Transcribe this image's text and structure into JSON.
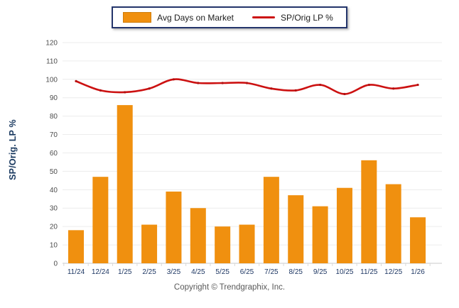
{
  "legend": {
    "items": [
      {
        "label": "Avg Days on Market",
        "type": "bar",
        "color": "#F0900F"
      },
      {
        "label": "SP/Orig LP %",
        "type": "line",
        "color": "#CC1111"
      }
    ]
  },
  "chart_data": {
    "type": "bar+line",
    "categories": [
      "11/24",
      "12/24",
      "1/25",
      "2/25",
      "3/25",
      "4/25",
      "5/25",
      "6/25",
      "7/25",
      "8/25",
      "9/25",
      "10/25",
      "11/25",
      "12/25",
      "1/26"
    ],
    "series": [
      {
        "name": "Avg Days on Market",
        "type": "bar",
        "color": "#F0900F",
        "values": [
          18,
          47,
          86,
          21,
          39,
          30,
          20,
          21,
          47,
          37,
          31,
          41,
          56,
          43,
          25
        ]
      },
      {
        "name": "SP/Orig LP %",
        "type": "line",
        "color": "#CC1111",
        "values": [
          99,
          94,
          93,
          95,
          100,
          98,
          98,
          98,
          95,
          94,
          97,
          92,
          97,
          95,
          97
        ]
      }
    ],
    "title": "",
    "xlabel": "",
    "ylabel": "SP/Orig. LP %",
    "ylim": [
      0,
      120
    ],
    "ytick_step": 10,
    "grid": "horizontal",
    "legend_position": "top-center"
  },
  "footer": {
    "copyright": "Copyright © Trendgraphix, Inc."
  },
  "colors": {
    "bar": "#F0900F",
    "line": "#CC1111",
    "line_marker": "#B30F0F",
    "grid": "#ECECEC",
    "baseline": "#C8C8C8",
    "tick": "#D9D9D9",
    "ytick_label": "#4D4D4D",
    "xtick_label": "#1F3864",
    "ylabel": "#17375E",
    "legend_border": "#24356B",
    "copyright": "#595959"
  }
}
